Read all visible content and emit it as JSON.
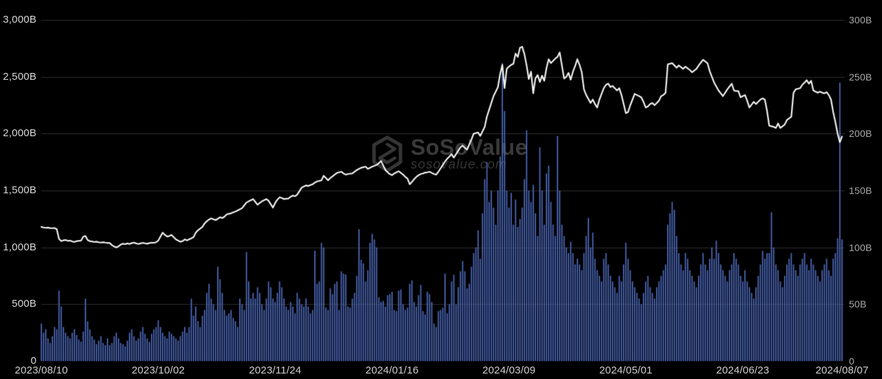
{
  "watermark": {
    "title": "SoSoValue",
    "subtitle": "sosovalue.com"
  },
  "chart_data": {
    "type": "combo",
    "title": "",
    "legend": "none",
    "grid": true,
    "x_axis": {
      "start": "2023/08/10",
      "end": "2024/08/07",
      "total_days": 363,
      "ticks": [
        {
          "label": "2023/08/10",
          "day": 0
        },
        {
          "label": "2023/10/02",
          "day": 53
        },
        {
          "label": "2023/11/24",
          "day": 106
        },
        {
          "label": "2024/01/16",
          "day": 159
        },
        {
          "label": "2024/03/09",
          "day": 212
        },
        {
          "label": "2024/05/01",
          "day": 265
        },
        {
          "label": "2024/06/23",
          "day": 318
        },
        {
          "label": "2024/08/07",
          "day": 363
        }
      ]
    },
    "left_axis": {
      "max": 3000,
      "ticks": [
        {
          "value": 0,
          "label": "0"
        },
        {
          "value": 500,
          "label": "500B"
        },
        {
          "value": 1000,
          "label": "1,000B"
        },
        {
          "value": 1500,
          "label": "1,500B"
        },
        {
          "value": 2000,
          "label": "2,000B"
        },
        {
          "value": 2500,
          "label": "2,500B"
        },
        {
          "value": 3000,
          "label": "3,000B"
        }
      ]
    },
    "right_axis": {
      "max": 300,
      "ticks": [
        {
          "value": 0,
          "label": "0"
        },
        {
          "value": 50,
          "label": "50B"
        },
        {
          "value": 100,
          "label": "100B"
        },
        {
          "value": 150,
          "label": "150B"
        },
        {
          "value": 200,
          "label": "200B"
        },
        {
          "value": 250,
          "label": "250B"
        },
        {
          "value": 300,
          "label": "300B"
        }
      ]
    },
    "series": [
      {
        "name": "market-cap-line",
        "type": "line",
        "axis": "left",
        "unit": "B",
        "color": "#f2f2f0",
        "values": [
          1180,
          1175,
          1172,
          1174,
          1170,
          1169,
          1170,
          1160,
          1075,
          1055,
          1062,
          1065,
          1058,
          1060,
          1052,
          1048,
          1055,
          1058,
          1060,
          1095,
          1100,
          1065,
          1055,
          1052,
          1048,
          1050,
          1045,
          1042,
          1046,
          1042,
          1040,
          1038,
          1020,
          1008,
          1000,
          1010,
          1025,
          1032,
          1028,
          1035,
          1030,
          1038,
          1042,
          1035,
          1030,
          1035,
          1040,
          1036,
          1032,
          1038,
          1042,
          1040,
          1045,
          1060,
          1095,
          1130,
          1110,
          1095,
          1100,
          1110,
          1090,
          1070,
          1060,
          1050,
          1055,
          1070,
          1062,
          1070,
          1080,
          1090,
          1130,
          1150,
          1165,
          1180,
          1210,
          1230,
          1245,
          1255,
          1248,
          1240,
          1252,
          1265,
          1258,
          1270,
          1290,
          1295,
          1300,
          1308,
          1315,
          1325,
          1335,
          1345,
          1370,
          1395,
          1405,
          1415,
          1425,
          1400,
          1375,
          1390,
          1405,
          1415,
          1425,
          1410,
          1380,
          1350,
          1390,
          1420,
          1440,
          1435,
          1425,
          1428,
          1430,
          1445,
          1455,
          1450,
          1465,
          1495,
          1525,
          1535,
          1545,
          1540,
          1548,
          1555,
          1570,
          1580,
          1585,
          1590,
          1630,
          1610,
          1590,
          1610,
          1625,
          1640,
          1655,
          1660,
          1665,
          1650,
          1640,
          1645,
          1648,
          1650,
          1665,
          1680,
          1690,
          1700,
          1705,
          1710,
          1690,
          1700,
          1710,
          1718,
          1725,
          1740,
          1760,
          1720,
          1680,
          1660,
          1645,
          1635,
          1650,
          1660,
          1670,
          1655,
          1640,
          1620,
          1605,
          1555,
          1575,
          1600,
          1620,
          1635,
          1645,
          1650,
          1658,
          1660,
          1665,
          1655,
          1645,
          1640,
          1665,
          1695,
          1725,
          1755,
          1780,
          1800,
          1820,
          1790,
          1820,
          1850,
          1880,
          1895,
          1875,
          1860,
          1905,
          1950,
          2000,
          2005,
          2010,
          1980,
          2020,
          2060,
          2150,
          2210,
          2270,
          2330,
          2370,
          2410,
          2525,
          2605,
          2400,
          2570,
          2590,
          2605,
          2615,
          2705,
          2675,
          2755,
          2765,
          2700,
          2600,
          2480,
          2545,
          2355,
          2485,
          2515,
          2455,
          2510,
          2465,
          2575,
          2655,
          2620,
          2640,
          2660,
          2675,
          2715,
          2600,
          2485,
          2500,
          2535,
          2475,
          2545,
          2595,
          2655,
          2605,
          2540,
          2390,
          2340,
          2305,
          2270,
          2300,
          2260,
          2230,
          2300,
          2350,
          2400,
          2430,
          2440,
          2410,
          2420,
          2400,
          2380,
          2400,
          2340,
          2260,
          2180,
          2190,
          2250,
          2300,
          2350,
          2340,
          2330,
          2320,
          2280,
          2230,
          2240,
          2260,
          2270,
          2250,
          2270,
          2290,
          2330,
          2340,
          2360,
          2610,
          2615,
          2620,
          2600,
          2580,
          2600,
          2585,
          2570,
          2590,
          2575,
          2560,
          2540,
          2555,
          2570,
          2600,
          2625,
          2650,
          2635,
          2620,
          2550,
          2500,
          2450,
          2415,
          2380,
          2355,
          2330,
          2360,
          2390,
          2415,
          2440,
          2380,
          2375,
          2375,
          2320,
          2330,
          2340,
          2290,
          2230,
          2255,
          2280,
          2260,
          2280,
          2300,
          2310,
          2300,
          2200,
          2070,
          2065,
          2060,
          2050,
          2090,
          2050,
          2065,
          2080,
          2120,
          2135,
          2150,
          2360,
          2390,
          2395,
          2400,
          2430,
          2450,
          2470,
          2440,
          2465,
          2380,
          2370,
          2360,
          2370,
          2360,
          2355,
          2365,
          2340,
          2300,
          2190,
          2100,
          2000,
          1925,
          1975
        ]
      },
      {
        "name": "volume-bars",
        "type": "bar",
        "axis": "right",
        "unit": "B",
        "color": "#4c68b8",
        "values": [
          33,
          25,
          28,
          20,
          16,
          22,
          30,
          28,
          62,
          48,
          30,
          25,
          22,
          20,
          25,
          28,
          23,
          19,
          17,
          26,
          55,
          35,
          28,
          22,
          19,
          15,
          18,
          22,
          16,
          14,
          20,
          14,
          16,
          22,
          25,
          20,
          16,
          15,
          13,
          18,
          25,
          28,
          22,
          18,
          20,
          26,
          30,
          24,
          20,
          17,
          24,
          28,
          30,
          36,
          30,
          25,
          22,
          20,
          26,
          24,
          22,
          20,
          18,
          22,
          26,
          30,
          25,
          30,
          55,
          40,
          48,
          35,
          30,
          40,
          45,
          60,
          68,
          55,
          50,
          45,
          83,
          72,
          60,
          45,
          40,
          42,
          45,
          38,
          35,
          30,
          55,
          50,
          45,
          96,
          70,
          55,
          60,
          55,
          65,
          60,
          50,
          45,
          55,
          70,
          65,
          55,
          52,
          60,
          70,
          65,
          55,
          48,
          45,
          52,
          48,
          42,
          60,
          55,
          50,
          48,
          55,
          48,
          42,
          45,
          97,
          68,
          70,
          104,
          100,
          47,
          45,
          64,
          59,
          68,
          70,
          45,
          79,
          77,
          76,
          48,
          47,
          55,
          60,
          75,
          116,
          89,
          86,
          70,
          80,
          104,
          112,
          107,
          100,
          56,
          52,
          53,
          48,
          58,
          59,
          61,
          45,
          44,
          62,
          63,
          50,
          45,
          47,
          68,
          71,
          52,
          48,
          58,
          67,
          44,
          41,
          61,
          59,
          52,
          33,
          30,
          44,
          45,
          47,
          77,
          42,
          50,
          70,
          76,
          50,
          65,
          79,
          88,
          79,
          64,
          68,
          83,
          95,
          100,
          115,
          90,
          130,
          160,
          175,
          140,
          150,
          135,
          120,
          150,
          180,
          262,
          220,
          150,
          135,
          148,
          120,
          142,
          118,
          125,
          135,
          160,
          203,
          150,
          140,
          155,
          130,
          110,
          188,
          150,
          120,
          165,
          172,
          140,
          120,
          110,
          198,
          150,
          120,
          110,
          100,
          95,
          105,
          95,
          85,
          90,
          85,
          80,
          95,
          110,
          126,
          100,
          113,
          90,
          80,
          75,
          70,
          90,
          95,
          85,
          75,
          70,
          65,
          60,
          75,
          70,
          85,
          104,
          90,
          80,
          70,
          65,
          60,
          55,
          50,
          60,
          70,
          75,
          65,
          60,
          55,
          65,
          70,
          75,
          80,
          85,
          120,
          130,
          140,
          133,
          110,
          95,
          85,
          80,
          95,
          90,
          80,
          75,
          70,
          65,
          75,
          85,
          95,
          85,
          80,
          90,
          100,
          90,
          106,
          95,
          85,
          80,
          75,
          70,
          80,
          85,
          95,
          90,
          85,
          75,
          70,
          80,
          70,
          65,
          60,
          55,
          65,
          75,
          85,
          97,
          90,
          95,
          95,
          131,
          100,
          85,
          80,
          70,
          65,
          75,
          85,
          90,
          95,
          85,
          80,
          75,
          85,
          90,
          95,
          85,
          80,
          90,
          85,
          80,
          75,
          70,
          80,
          85,
          90,
          80,
          75,
          90,
          95,
          108,
          245,
          107
        ]
      }
    ],
    "colors": {
      "background": "#000000",
      "grid": "#2d2d2d",
      "left_tick": "#d8d8d8",
      "right_tick": "#a9a9a9",
      "date_tick": "#cfcfcf",
      "watermark": "#3a3a3a"
    }
  }
}
